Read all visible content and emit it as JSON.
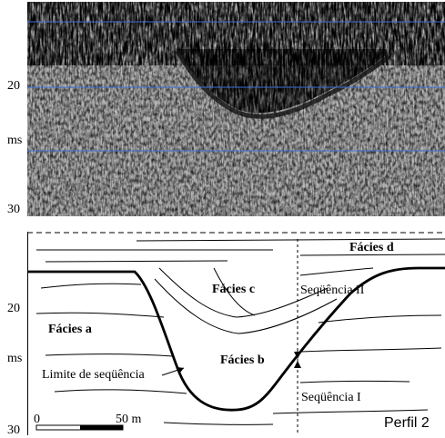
{
  "seismic_profile": {
    "axis_labels": {
      "ms_20": "20",
      "ms_unit": "ms",
      "ms_30": "30"
    }
  },
  "interpreted_profile": {
    "axis_labels": {
      "ms_20": "20",
      "ms_unit": "ms",
      "ms_30": "30"
    },
    "facies_labels": {
      "a": "Fácies a",
      "b": "Fácies b",
      "c": "Fácies c",
      "d": "Fácies d"
    },
    "sequence_labels": {
      "seq_one": "Seqüência I",
      "seq_two": "Seqüência II",
      "boundary": "Limite de seqüência"
    },
    "scale_bar": {
      "start": "0",
      "end": "50 m"
    },
    "profile_name": "Perfil 2"
  }
}
